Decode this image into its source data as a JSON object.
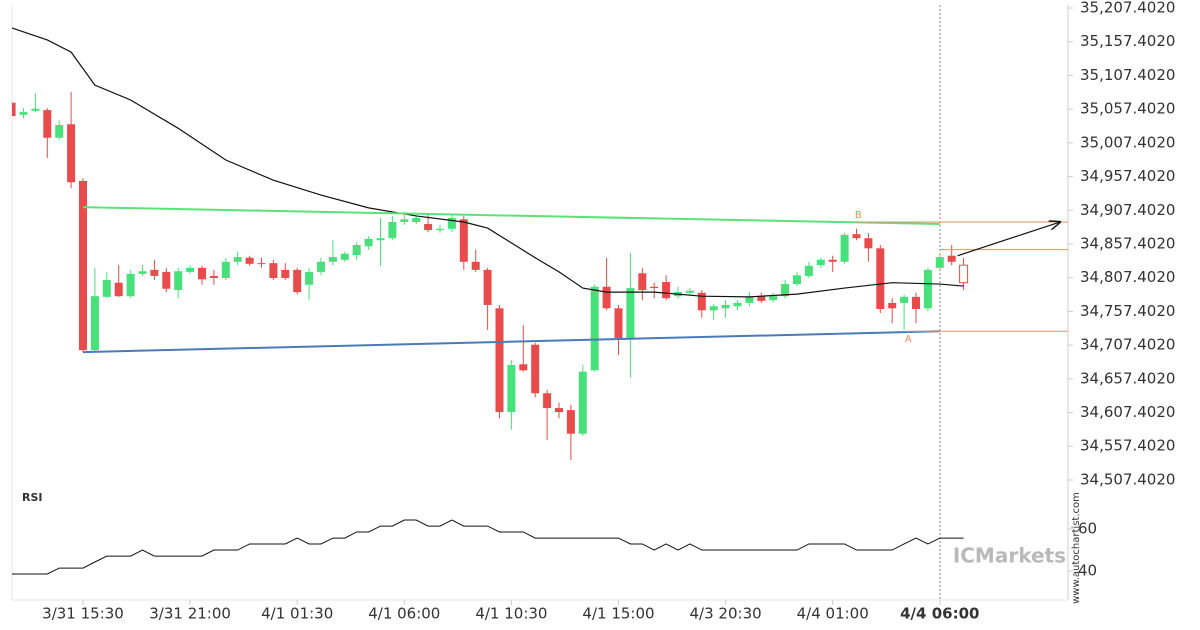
{
  "chart_data": {
    "type": "candlestick",
    "categories": [
      null,
      null,
      null,
      null,
      null,
      null,
      "3/31 15:30",
      null,
      null,
      null,
      null,
      null,
      null,
      null,
      null,
      "3/31 21:00",
      null,
      null,
      null,
      null,
      null,
      null,
      null,
      null,
      "4/1 01:30",
      null,
      null,
      null,
      null,
      null,
      null,
      null,
      null,
      "4/1 06:00",
      null,
      null,
      null,
      null,
      null,
      null,
      null,
      null,
      "4/1 10:30",
      null,
      null,
      null,
      null,
      null,
      null,
      null,
      null,
      "4/1 15:00",
      null,
      null,
      null,
      null,
      null,
      null,
      null,
      null,
      "4/3 20:30",
      null,
      null,
      null,
      null,
      null,
      null,
      null,
      null,
      "4/4 01:00",
      null,
      null,
      null,
      null,
      null,
      null,
      null,
      null,
      "4/4 06:00",
      null
    ],
    "open": [
      35067,
      35049,
      35055,
      35056,
      35015,
      35035,
      34951,
      34700,
      34779,
      34800,
      34780,
      34813,
      34819,
      34816,
      34789,
      34816,
      34822,
      34810,
      34807,
      34831,
      34837,
      34829,
      34829,
      34819,
      34819,
      34797,
      34816,
      34831,
      34834,
      34841,
      34854,
      34863,
      34866,
      34890,
      34890,
      34887,
      34878,
      34880,
      34894,
      34831,
      34819,
      34762,
      34608,
      34679,
      34708,
      34636,
      34614,
      34611,
      34576,
      34670,
      34794,
      34762,
      34718,
      34814,
      34794,
      34801,
      34780,
      34785,
      34785,
      34759,
      34762,
      34765,
      34770,
      34780,
      34774,
      34780,
      34798,
      34810,
      34826,
      34834,
      34831,
      34872,
      34866,
      34851,
      34770,
      34770,
      34779,
      34762,
      34822,
      34840
    ],
    "high": [
      35071,
      35059,
      35081,
      35059,
      35041,
      35083,
      34955,
      34822,
      34816,
      34826,
      34819,
      34826,
      34834,
      34822,
      34822,
      34826,
      34825,
      34819,
      34837,
      34846,
      34840,
      34837,
      34834,
      34829,
      34822,
      34822,
      34837,
      34863,
      34846,
      34860,
      34869,
      34896,
      34899,
      34905,
      34900,
      34902,
      34886,
      34902,
      34899,
      34849,
      34822,
      34767,
      34685,
      34737,
      34711,
      34641,
      34622,
      34619,
      34678,
      34797,
      34837,
      34767,
      34844,
      34822,
      34800,
      34811,
      34794,
      34792,
      34789,
      34768,
      34774,
      34774,
      34786,
      34785,
      34785,
      34804,
      34816,
      34831,
      34837,
      34840,
      34874,
      34880,
      34874,
      34856,
      34777,
      34782,
      34785,
      34822,
      34843,
      34856
    ],
    "low": [
      35046,
      35044,
      35053,
      34985,
      35012,
      34940,
      34697,
      34697,
      34777,
      34779,
      34777,
      34810,
      34804,
      34786,
      34777,
      34813,
      34797,
      34797,
      34804,
      34826,
      34825,
      34822,
      34804,
      34804,
      34783,
      34774,
      34811,
      34826,
      34831,
      34834,
      34849,
      34825,
      34863,
      34886,
      34887,
      34875,
      34874,
      34875,
      34819,
      34816,
      34730,
      34599,
      34582,
      34668,
      34630,
      34567,
      34599,
      34537,
      34573,
      34668,
      34759,
      34693,
      34659,
      34774,
      34777,
      34774,
      34777,
      34782,
      34748,
      34745,
      34748,
      34759,
      34765,
      34770,
      34771,
      34777,
      34795,
      34807,
      34822,
      34816,
      34828,
      34863,
      34831,
      34755,
      34740,
      34730,
      34740,
      34758,
      34819,
      34826
    ],
    "close": [
      35047,
      35053,
      35058,
      35015,
      35034,
      34949,
      34700,
      34780,
      34804,
      34780,
      34813,
      34817,
      34810,
      34791,
      34817,
      34822,
      34805,
      34807,
      34831,
      34838,
      34828,
      34828,
      34807,
      34807,
      34786,
      34816,
      34831,
      34838,
      34843,
      34856,
      34865,
      34866,
      34890,
      34894,
      34896,
      34878,
      34880,
      34896,
      34831,
      34819,
      34767,
      34608,
      34678,
      34670,
      34636,
      34614,
      34608,
      34576,
      34668,
      34794,
      34762,
      34718,
      34792,
      34789,
      34792,
      34777,
      34786,
      34788,
      34759,
      34765,
      34767,
      34770,
      34779,
      34773,
      34780,
      34798,
      34811,
      34825,
      34834,
      34831,
      34871,
      34866,
      34851,
      34761,
      34762,
      34779,
      34761,
      34819,
      34838,
      34831
    ],
    "up_color": "#47e07b",
    "down_color": "#e84b4b",
    "projection": {
      "x": 80,
      "open": 34826,
      "high": 34837,
      "low": 34789,
      "close": 34800,
      "color": "#e84b4b"
    },
    "ma": {
      "color": "#111111",
      "x": [
        0,
        3,
        5,
        7,
        10,
        14,
        18,
        22,
        26,
        30,
        34,
        38,
        40,
        42,
        44,
        46,
        48,
        50,
        54,
        58,
        62,
        66,
        70,
        74,
        78,
        80
      ],
      "values": [
        35178,
        35160,
        35142,
        35093,
        35071,
        35029,
        34982,
        34952,
        34930,
        34911,
        34899,
        34890,
        34881,
        34859,
        34837,
        34816,
        34792,
        34786,
        34786,
        34780,
        34779,
        34783,
        34792,
        34800,
        34798,
        34795
      ]
    },
    "ylim": [
      34492.5,
      35211.9
    ],
    "yticks": [
      {
        "value": 35207.402,
        "label": "35,207.4020"
      },
      {
        "value": 35157.402,
        "label": "35,157.4020"
      },
      {
        "value": 35107.402,
        "label": "35,107.4020"
      },
      {
        "value": 35057.402,
        "label": "35,057.4020"
      },
      {
        "value": 35007.402,
        "label": "35,007.4020"
      },
      {
        "value": 34957.402,
        "label": "34,957.4020"
      },
      {
        "value": 34907.402,
        "label": "34,907.4020"
      },
      {
        "value": 34857.402,
        "label": "34,857.4020"
      },
      {
        "value": 34807.402,
        "label": "34,807.4020"
      },
      {
        "value": 34757.402,
        "label": "34,757.4020"
      },
      {
        "value": 34707.402,
        "label": "34,707.4020"
      },
      {
        "value": 34657.402,
        "label": "34,657.4020"
      },
      {
        "value": 34607.402,
        "label": "34,607.4020"
      },
      {
        "value": 34557.402,
        "label": "34,557.4020"
      },
      {
        "value": 34507.402,
        "label": "34,507.4020"
      }
    ],
    "pattern": {
      "resistance": {
        "color": "#5de27a",
        "x": [
          6,
          78
        ],
        "values": [
          34912,
          34887
        ]
      },
      "support": {
        "color": "#4a7ab8",
        "x": [
          6,
          78
        ],
        "values": [
          34697,
          34728
        ]
      },
      "levels": {
        "color": "#e8925e",
        "x": [
          70.9,
          78,
          75.1
        ],
        "values": [
          34890,
          34849,
          34728
        ],
        "labels": [
          "B",
          null,
          "A"
        ]
      }
    },
    "forecast": {
      "color": "#111111",
      "x": [
        79.5,
        88.1
      ],
      "values": [
        34840,
        34890
      ]
    },
    "rsi": {
      "label": "RSI",
      "color": "#111111",
      "ylim": [
        26.2,
        78.6
      ],
      "yticks": [
        60,
        40
      ],
      "values": [
        38.6,
        38.6,
        38.6,
        38.6,
        41.4,
        41.4,
        41.4,
        44.3,
        47.1,
        47.1,
        47.1,
        50,
        47.1,
        47.1,
        47.1,
        47.1,
        47.1,
        50,
        50,
        50,
        52.9,
        52.9,
        52.9,
        52.9,
        55.7,
        52.9,
        52.9,
        55.7,
        55.7,
        58.6,
        58.6,
        61.4,
        61.4,
        64.3,
        64.3,
        61.4,
        61.4,
        64.3,
        61.4,
        61.4,
        61.4,
        58.6,
        58.6,
        58.6,
        55.7,
        55.7,
        55.7,
        55.7,
        55.7,
        55.7,
        55.7,
        55.7,
        52.9,
        52.9,
        50,
        52.9,
        50,
        52.9,
        50,
        50,
        50,
        50,
        50,
        50,
        50,
        50,
        50,
        52.9,
        52.9,
        52.9,
        52.9,
        50,
        50,
        50,
        50,
        52.9,
        55.7,
        52.9,
        55.7,
        55.7,
        55.7
      ]
    },
    "watermark": "ICMarkets",
    "source": "www.autochartist.com"
  }
}
